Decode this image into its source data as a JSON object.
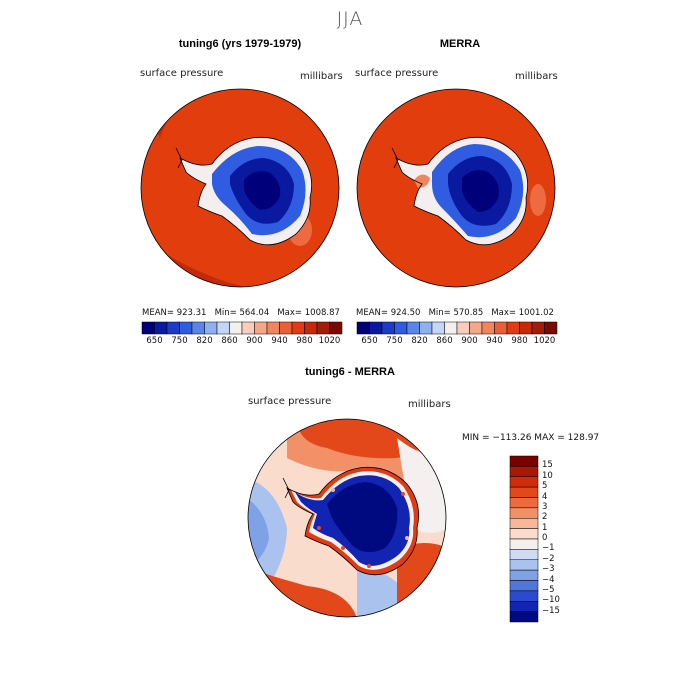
{
  "figure": {
    "title": "JJA"
  },
  "panels": [
    {
      "title": "tuning6 (yrs 1979-1979)",
      "variable": "surface pressure",
      "units": "millibars",
      "stats": {
        "mean_label": "MEAN=",
        "mean": "923.31",
        "min_label": "Min=",
        "min": "564.04",
        "max_label": "Max=",
        "max": "1008.87"
      },
      "colorbar_ticks": [
        "650",
        "750",
        "820",
        "860",
        "900",
        "940",
        "980",
        "1020"
      ]
    },
    {
      "title": "MERRA",
      "variable": "surface pressure",
      "units": "millibars",
      "stats": {
        "mean_label": "MEAN=",
        "mean": "924.50",
        "min_label": "Min=",
        "min": "570.85",
        "max_label": "Max=",
        "max": "1001.02"
      },
      "colorbar_ticks": [
        "650",
        "750",
        "820",
        "860",
        "900",
        "940",
        "980",
        "1020"
      ]
    }
  ],
  "diff_panel": {
    "title": "tuning6 - MERRA",
    "variable": "surface pressure",
    "units": "millibars",
    "minmax": "MIN = −113.26  MAX = 128.97",
    "colorbar_ticks": [
      "15",
      "10",
      "5",
      "4",
      "3",
      "2",
      "1",
      "0",
      "−1",
      "−2",
      "−3",
      "−4",
      "−5",
      "−10",
      "−15"
    ]
  },
  "colors": {
    "field_scale": [
      "#00007a",
      "#0a1aa0",
      "#1a3cc8",
      "#2f5ce0",
      "#5a86ea",
      "#8fb0f0",
      "#c4d6f6",
      "#f3efef",
      "#f8cdbb",
      "#f5a888",
      "#f08660",
      "#e96038",
      "#e23b14",
      "#c72a0a",
      "#a31e08",
      "#7a0a00"
    ],
    "diff_scale": [
      "#7a0000",
      "#a81a06",
      "#cf2d0a",
      "#e2481a",
      "#ec6a3c",
      "#f29068",
      "#f6b79a",
      "#f9dccc",
      "#f3f0ef",
      "#cfdcf4",
      "#a9c2ee",
      "#7fa2e6",
      "#5076de",
      "#2b4ad2",
      "#1224b2",
      "#000a80"
    ],
    "ocean_high": "#e23d0c",
    "ocean_low": "#c42a0a"
  }
}
